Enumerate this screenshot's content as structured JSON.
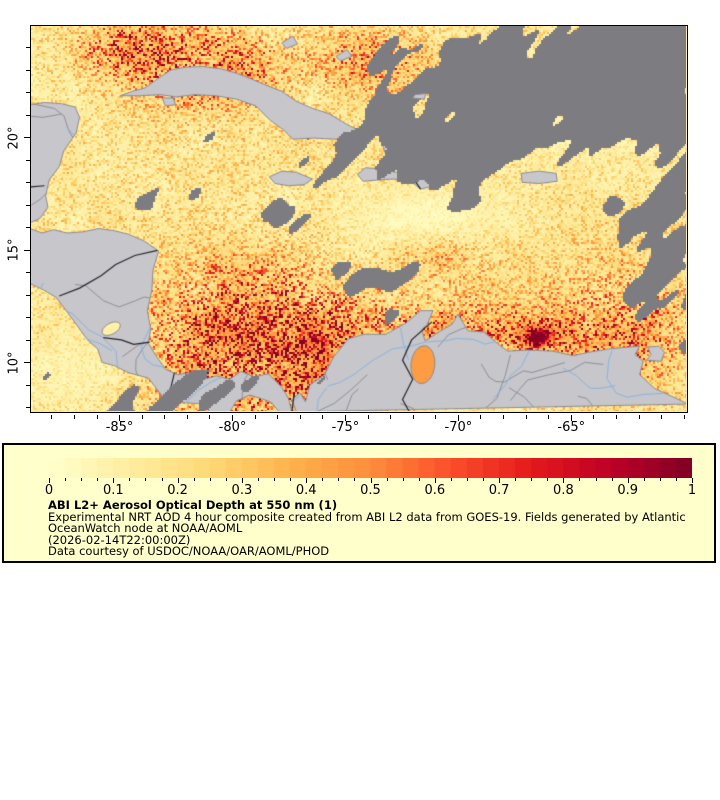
{
  "chart_data": {
    "type": "heatmap",
    "title": "ABI L2+ Aerosol Optical Depth at 550 nm (1)",
    "annotations": {
      "line1": "Experimental NRT AOD 4 hour composite created from ABI L2 data from GOES-19. Fields generated by Atlantic",
      "line2": "OceanWatch node at NOAA/AOML",
      "line3": "(2026-02-14T22:00:00Z)",
      "line4": "Data courtesy of USDOC/NOAA/OAR/AOML/PHOD"
    },
    "colorbar": {
      "min": 0,
      "max": 1,
      "tick_values": [
        0,
        0.1,
        0.2,
        0.3,
        0.4,
        0.5,
        0.6,
        0.7,
        0.8,
        0.9,
        1
      ],
      "tick_labels": [
        "0",
        "0.1",
        "0.2",
        "0.3",
        "0.4",
        "0.5",
        "0.6",
        "0.7",
        "0.8",
        "0.9",
        "1"
      ],
      "minor_tick_step": 0.025,
      "n_levels": 40,
      "gradient_stops": [
        "#ffffcc",
        "#ffeda0",
        "#fed976",
        "#feb24c",
        "#fd8d3c",
        "#fc4e2a",
        "#e31a1c",
        "#bd0026",
        "#800026"
      ]
    },
    "lon_axis": {
      "tick_values": [
        -85,
        -80,
        -75,
        -70,
        -65
      ],
      "tick_labels": [
        "-85°",
        "-80°",
        "-75°",
        "-70°",
        "-65°"
      ],
      "minor_tick_step": 1,
      "range": [
        -88.9,
        -59.9
      ]
    },
    "lat_axis": {
      "tick_values": [
        10,
        15,
        20
      ],
      "tick_labels": [
        "10°",
        "15°",
        "20°"
      ],
      "minor_tick_step": 1,
      "range": [
        7.84,
        24.95
      ]
    },
    "legend_position": "bottom"
  },
  "style": {
    "land_color": "#c6c6cb",
    "coast_color": "#8d8d94",
    "cloud_color": "#7c7c81",
    "river_color": "#8ab4de",
    "border_minor_color": "#8f8f96",
    "border_major_color": "#26262e",
    "legend_bg": "#ffffcc",
    "frame_color": "#000000",
    "page_bg": "#ffffff",
    "text_color": "#000000"
  }
}
